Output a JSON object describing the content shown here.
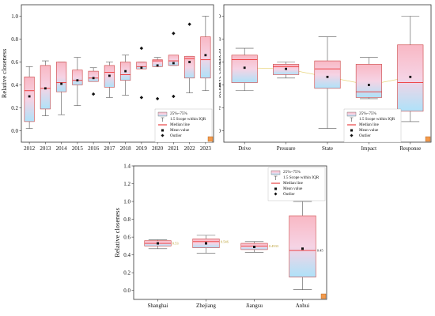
{
  "colors": {
    "box_top": "#f9b8c4",
    "box_bottom": "#aee2f9",
    "median": "#e63333",
    "mean_line": "#e8d47a",
    "corner_marker": "#f39a4c",
    "value_label": "#b89c2c"
  },
  "chart_data": [
    {
      "type": "box",
      "title": "",
      "ylabel": "Relative closeness",
      "xlabel": "",
      "ylim": [
        -0.1,
        1.1
      ],
      "yticks": [
        "0.0",
        "0.2",
        "0.4",
        "0.6",
        "0.8",
        "1.0"
      ],
      "categories": [
        "2012",
        "2013",
        "2014",
        "2015",
        "2016",
        "2017",
        "2018",
        "2019",
        "2020",
        "2021",
        "2022",
        "2023"
      ],
      "boxes": [
        {
          "q1": 0.08,
          "q3": 0.47,
          "median": 0.35,
          "mean": 0.3,
          "whisker_low": 0.02,
          "whisker_high": 0.56,
          "outliers": []
        },
        {
          "q1": 0.19,
          "q3": 0.57,
          "median": 0.37,
          "mean": 0.37,
          "whisker_low": 0.13,
          "whisker_high": 0.61,
          "outliers": []
        },
        {
          "q1": 0.34,
          "q3": 0.6,
          "median": 0.42,
          "mean": 0.41,
          "whisker_low": 0.14,
          "whisker_high": 0.6,
          "outliers": []
        },
        {
          "q1": 0.4,
          "q3": 0.53,
          "median": 0.44,
          "mean": 0.44,
          "whisker_low": 0.22,
          "whisker_high": 0.64,
          "outliers": []
        },
        {
          "q1": 0.43,
          "q3": 0.52,
          "median": 0.46,
          "mean": 0.46,
          "whisker_low": 0.43,
          "whisker_high": 0.55,
          "outliers": [
            0.32
          ]
        },
        {
          "q1": 0.38,
          "q3": 0.57,
          "median": 0.51,
          "mean": 0.48,
          "whisker_low": 0.29,
          "whisker_high": 0.6,
          "outliers": []
        },
        {
          "q1": 0.44,
          "q3": 0.6,
          "median": 0.49,
          "mean": 0.52,
          "whisker_low": 0.31,
          "whisker_high": 0.66,
          "outliers": []
        },
        {
          "q1": 0.54,
          "q3": 0.6,
          "median": 0.56,
          "mean": 0.55,
          "whisker_low": 0.54,
          "whisker_high": 0.6,
          "outliers": [
            0.72,
            0.29
          ]
        },
        {
          "q1": 0.56,
          "q3": 0.62,
          "median": 0.61,
          "mean": 0.57,
          "whisker_low": 0.56,
          "whisker_high": 0.64,
          "outliers": [
            0.28
          ]
        },
        {
          "q1": 0.57,
          "q3": 0.66,
          "median": 0.61,
          "mean": 0.59,
          "whisker_low": 0.57,
          "whisker_high": 0.66,
          "outliers": [
            0.85,
            0.3
          ]
        },
        {
          "q1": 0.46,
          "q3": 0.65,
          "median": 0.63,
          "mean": 0.6,
          "whisker_low": 0.33,
          "whisker_high": 0.65,
          "outliers": [
            0.93
          ]
        },
        {
          "q1": 0.46,
          "q3": 0.82,
          "median": 0.62,
          "mean": 0.66,
          "whisker_low": 0.35,
          "whisker_high": 1.0,
          "outliers": []
        }
      ],
      "legend": {
        "position": "bottom-right",
        "entries": [
          "25%~75%",
          "1.5 Scope within IQR",
          "Median line",
          "Mean value",
          "Outlier"
        ]
      }
    },
    {
      "type": "box",
      "title": "",
      "ylabel": "Relative closeness",
      "xlabel": "",
      "ylim": [
        -0.1,
        1.1
      ],
      "yticks": [
        "0.0",
        "0.2",
        "0.4",
        "0.6",
        "0.8",
        "1.0"
      ],
      "categories": [
        "Drive",
        "Pressure",
        "State",
        "Impact",
        "Response"
      ],
      "boxes": [
        {
          "q1": 0.42,
          "q3": 0.66,
          "median": 0.62,
          "mean": 0.55,
          "whisker_low": 0.35,
          "whisker_high": 0.72,
          "outliers": []
        },
        {
          "q1": 0.49,
          "q3": 0.58,
          "median": 0.56,
          "mean": 0.54,
          "whisker_low": 0.46,
          "whisker_high": 0.6,
          "outliers": []
        },
        {
          "q1": 0.37,
          "q3": 0.61,
          "median": 0.54,
          "mean": 0.47,
          "whisker_low": 0.02,
          "whisker_high": 0.82,
          "outliers": []
        },
        {
          "q1": 0.29,
          "q3": 0.58,
          "median": 0.34,
          "mean": 0.4,
          "whisker_low": 0.28,
          "whisker_high": 0.64,
          "outliers": []
        },
        {
          "q1": 0.17,
          "q3": 0.75,
          "median": 0.42,
          "mean": 0.47,
          "whisker_low": 0.08,
          "whisker_high": 1.0,
          "outliers": []
        }
      ],
      "legend": {
        "position": "top-right",
        "entries": [
          "25%~75%",
          "1.5 Scope within IQR",
          "Median line",
          "Mean value",
          "Outlier"
        ]
      }
    },
    {
      "type": "box",
      "title": "",
      "ylabel": "Relative closeness",
      "xlabel": "",
      "ylim": [
        -0.1,
        1.4
      ],
      "yticks": [
        "0.0",
        "0.2",
        "0.4",
        "0.6",
        "0.8",
        "1.0",
        "1.2",
        "1.4"
      ],
      "categories": [
        "Shanghai",
        "Zhejiang",
        "Jiangsu",
        "Anhui"
      ],
      "boxes": [
        {
          "q1": 0.5,
          "q3": 0.56,
          "median": 0.53,
          "mean": 0.53,
          "whisker_low": 0.47,
          "whisker_high": 0.57,
          "outliers": [],
          "value_label": "0.53"
        },
        {
          "q1": 0.48,
          "q3": 0.58,
          "median": 0.55,
          "mean": 0.53,
          "whisker_low": 0.42,
          "whisker_high": 0.62,
          "outliers": [],
          "value_label": "0.546"
        },
        {
          "q1": 0.46,
          "q3": 0.53,
          "median": 0.5,
          "mean": 0.49,
          "whisker_low": 0.43,
          "whisker_high": 0.55,
          "outliers": [],
          "value_label": "0.4933"
        },
        {
          "q1": 0.15,
          "q3": 0.84,
          "median": 0.45,
          "mean": 0.47,
          "whisker_low": 0.01,
          "whisker_high": 1.0,
          "outliers": [],
          "value_label": "0.45"
        }
      ],
      "legend": {
        "position": "top-right",
        "entries": [
          "25%~75%",
          "1.5 Scope within IQR",
          "Median line",
          "Mean value",
          "Outlier"
        ]
      }
    }
  ]
}
